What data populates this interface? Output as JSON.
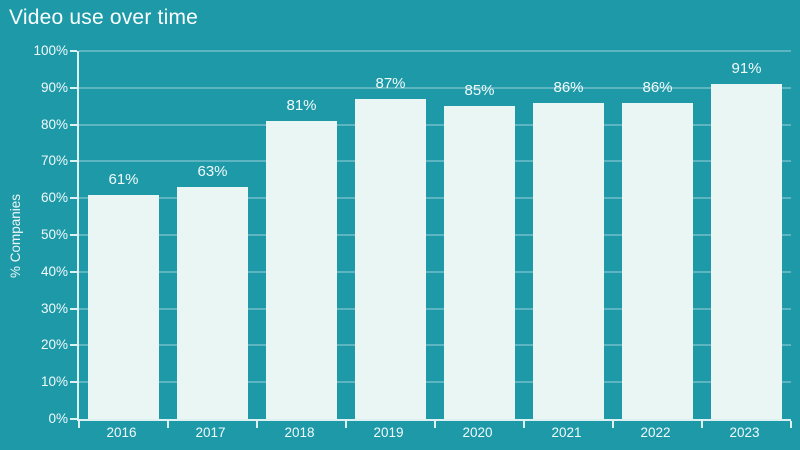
{
  "page": {
    "background_color": "#1e99a8"
  },
  "chart_data": {
    "type": "bar",
    "title": "Video use over time",
    "categories": [
      "2016",
      "2017",
      "2018",
      "2019",
      "2020",
      "2021",
      "2022",
      "2023"
    ],
    "values": [
      61,
      63,
      81,
      87,
      85,
      86,
      86,
      91
    ],
    "bar_labels": [
      "61%",
      "63%",
      "81%",
      "87%",
      "85%",
      "86%",
      "86%",
      "91%"
    ],
    "xlabel": "",
    "ylabel": "% Companies",
    "ylim": [
      0,
      100
    ],
    "ytick_step": 10,
    "ytick_labels": [
      "0%",
      "10%",
      "20%",
      "30%",
      "40%",
      "50%",
      "60%",
      "70%",
      "80%",
      "90%",
      "100%"
    ],
    "grid": true,
    "legend_position": "none",
    "bar_color": "#e9f6f4",
    "background_color": "#1e99a8",
    "grid_color": "rgba(255,255,255,0.28)",
    "axis_color": "rgba(255,255,255,0.85)",
    "text_color": "#f2fbfb"
  }
}
